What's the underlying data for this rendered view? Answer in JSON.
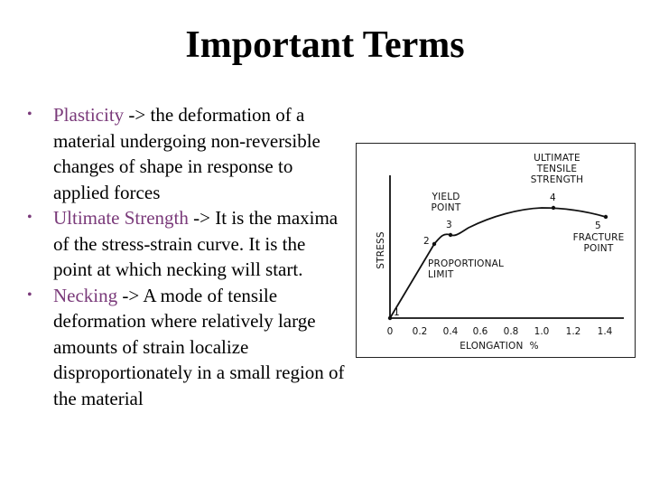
{
  "slide": {
    "title": "Important Terms"
  },
  "bullets": [
    {
      "term": "Plasticity",
      "text": " -> the deformation of a material undergoing non-reversible changes of shape in response to applied forces"
    },
    {
      "term": "Ultimate Strength",
      "text": " -> It is the maxima of the stress-strain curve. It is the point at which necking will start."
    },
    {
      "term": "Necking",
      "text": " -> A mode of tensile deformation where relatively large amounts of strain localize disproportionately in a small region of the material"
    }
  ],
  "diagram": {
    "ylabel": "STRESS",
    "xlabel": "ELONGATION  %",
    "x_ticks": [
      "0",
      "0.2",
      "0.4",
      "0.6",
      "0.8",
      "1.0",
      "1.2",
      "1.4"
    ],
    "points": [
      {
        "num": "1"
      },
      {
        "num": "2"
      },
      {
        "num": "3"
      },
      {
        "num": "4"
      },
      {
        "num": "5"
      }
    ],
    "labels": {
      "ultimate": [
        "ULTIMATE",
        "TENSILE",
        "STRENGTH"
      ],
      "yield": [
        "YIELD",
        "POINT"
      ],
      "fracture": [
        "FRACTURE",
        "POINT"
      ],
      "proportional": [
        "PROPORTIONAL",
        "LIMIT"
      ]
    }
  }
}
